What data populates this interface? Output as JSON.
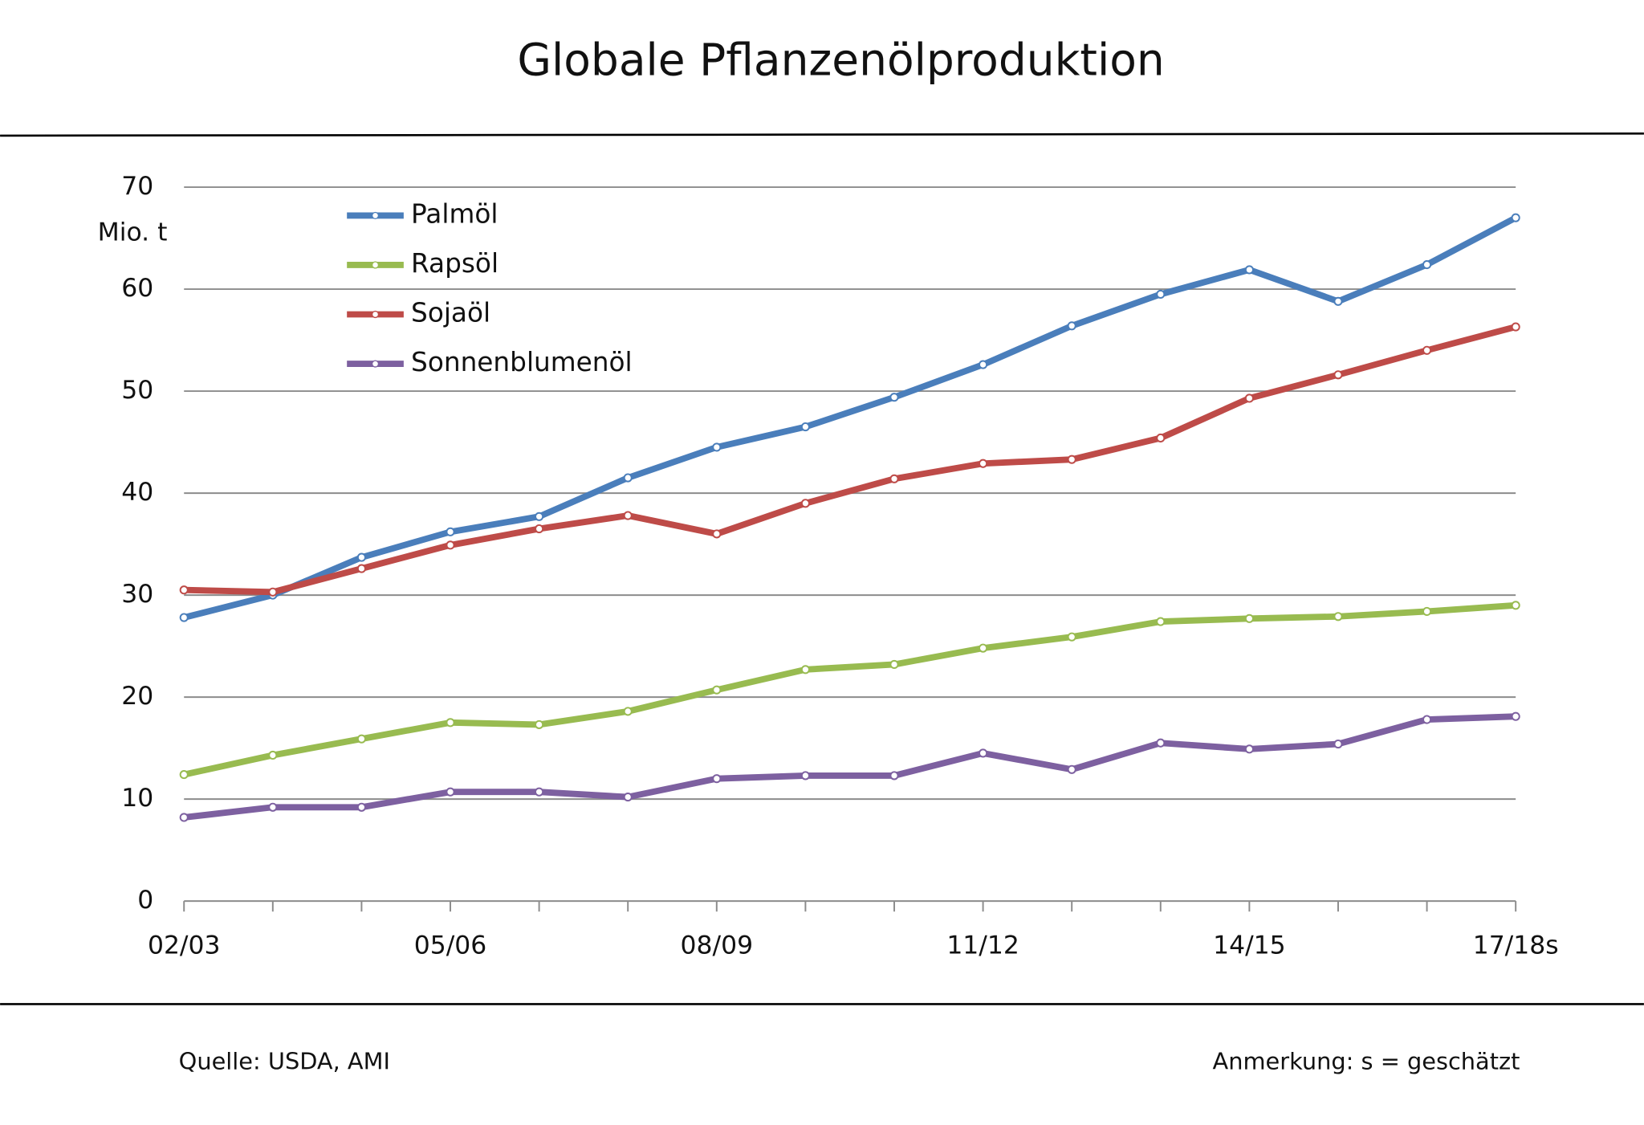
{
  "chart_data": {
    "type": "line",
    "title": "Globale Pflanzenölproduktion",
    "y_label": "Mio. t",
    "source": "Quelle: USDA, AMI",
    "note": "Anmerkung: s = geschätzt",
    "categories": [
      "02/03",
      null,
      null,
      "05/06",
      null,
      null,
      "08/09",
      null,
      null,
      "11/12",
      null,
      null,
      "14/15",
      null,
      null,
      "17/18s"
    ],
    "series": [
      {
        "name": "Palmöl",
        "color": "#4a7ebb",
        "values": [
          27.8,
          30.0,
          33.7,
          36.2,
          37.7,
          41.5,
          44.5,
          46.5,
          49.4,
          52.6,
          56.4,
          59.5,
          61.9,
          58.8,
          62.4,
          67.0
        ]
      },
      {
        "name": "Rapsöl",
        "color": "#98bb50",
        "values": [
          12.4,
          14.3,
          15.9,
          17.5,
          17.3,
          18.6,
          20.7,
          22.7,
          23.2,
          24.8,
          25.9,
          27.4,
          27.7,
          27.9,
          28.4,
          29.0
        ]
      },
      {
        "name": "Sojaöl",
        "color": "#be4b48",
        "values": [
          30.5,
          30.3,
          32.6,
          34.9,
          36.5,
          37.8,
          36.0,
          39.0,
          41.4,
          42.9,
          43.3,
          45.4,
          49.3,
          51.6,
          54.0,
          56.3
        ]
      },
      {
        "name": "Sonnenblumenöl",
        "color": "#7d60a0",
        "values": [
          8.2,
          9.2,
          9.2,
          10.7,
          10.7,
          10.2,
          12.0,
          12.3,
          12.3,
          14.5,
          12.9,
          15.5,
          14.9,
          15.4,
          17.8,
          18.1
        ]
      }
    ],
    "ylim": [
      0,
      70
    ],
    "yticks": [
      0,
      10,
      20,
      30,
      40,
      50,
      60,
      70
    ],
    "grid": true,
    "legend": "top-left"
  }
}
